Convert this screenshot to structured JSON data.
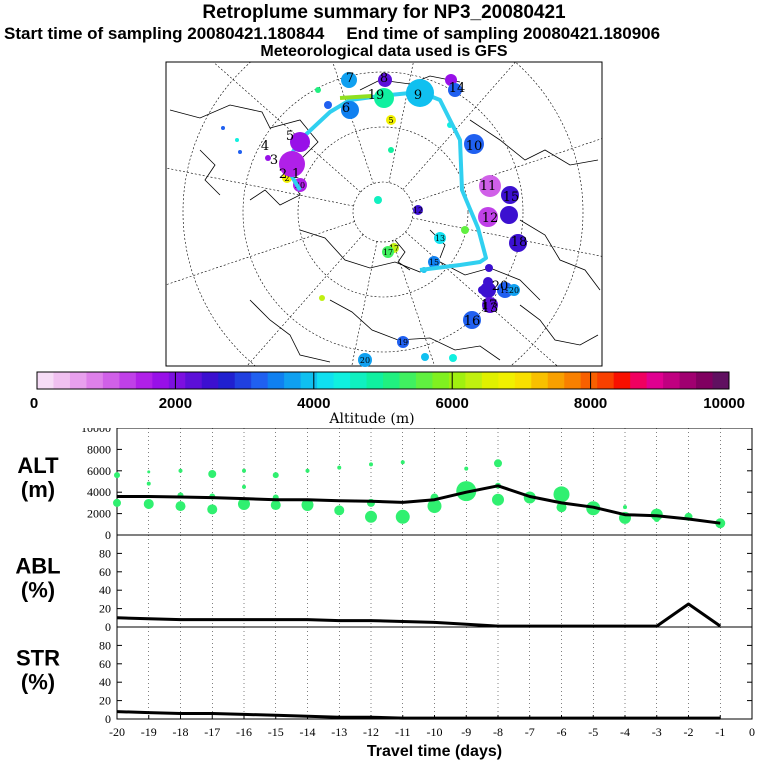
{
  "header": {
    "title": "Retroplume summary for NP3_20080421",
    "start_label": "Start time of sampling 20080421.180844",
    "end_label": "End time of sampling 20080421.180906",
    "met_label": "Meteorological data used is GFS"
  },
  "colorbar": {
    "ticks": [
      "0",
      "2000",
      "4000",
      "6000",
      "8000",
      "10000"
    ],
    "label": "Altitude (m)",
    "colors": [
      "#f6dcf6",
      "#f0c0f0",
      "#e8a0ee",
      "#de80ea",
      "#d060e8",
      "#c040e8",
      "#b020e8",
      "#9810e8",
      "#7c10e0",
      "#5c10d8",
      "#3c10d0",
      "#2020d0",
      "#2040e0",
      "#2060f0",
      "#1080f0",
      "#10a0f0",
      "#10c0f0",
      "#10e0f0",
      "#10f0e0",
      "#10f0c0",
      "#10f0a0",
      "#20f080",
      "#40f060",
      "#60f040",
      "#80f020",
      "#a0f010",
      "#c0f010",
      "#e0f000",
      "#f0f000",
      "#f8e000",
      "#f8c000",
      "#f8a000",
      "#f88000",
      "#f86000",
      "#f84000",
      "#f81000",
      "#f00060",
      "#e00090",
      "#c00080",
      "#a00070",
      "#800060",
      "#601060"
    ]
  },
  "map_labels": {
    "track_days": [
      "1",
      "2",
      "3",
      "4",
      "5",
      "6",
      "7",
      "8",
      "9",
      "10",
      "11",
      "12",
      "13",
      "14",
      "15",
      "16",
      "17",
      "18",
      "19",
      "20"
    ],
    "plume_labels": [
      "1",
      "2",
      "3",
      "4",
      "5",
      "6",
      "7",
      "8",
      "9",
      "10",
      "11",
      "12",
      "13",
      "14",
      "15",
      "16",
      "17",
      "18",
      "19",
      "20"
    ]
  },
  "chart_data": [
    {
      "type": "line",
      "panel": "ALT",
      "ylabel": "ALT\n(m)",
      "ylabel_line1": "ALT",
      "ylabel_line2": "(m)",
      "ylim": [
        0,
        10000
      ],
      "yticks": [
        "0",
        "2000",
        "4000",
        "6000",
        "8000",
        "10000"
      ],
      "x": [
        -20,
        -19,
        -18,
        -17,
        -16,
        -15,
        -14,
        -13,
        -12,
        -11,
        -10,
        -9,
        -8,
        -7,
        -6,
        -5,
        -4,
        -3,
        -2,
        -1
      ],
      "values": [
        3600,
        3600,
        3550,
        3500,
        3400,
        3300,
        3300,
        3200,
        3150,
        3050,
        3300,
        4000,
        4600,
        3600,
        3000,
        2600,
        1900,
        1800,
        1500,
        1100
      ],
      "markers_note": "green circles of varying size at scattered altitudes"
    },
    {
      "type": "line",
      "panel": "ABL",
      "ylabel_line1": "ABL",
      "ylabel_line2": "(%)",
      "ylim": [
        0,
        100
      ],
      "yticks": [
        "0",
        "20",
        "40",
        "60",
        "80"
      ],
      "x": [
        -20,
        -19,
        -18,
        -17,
        -16,
        -15,
        -14,
        -13,
        -12,
        -11,
        -10,
        -9,
        -8,
        -7,
        -6,
        -5,
        -4,
        -3,
        -2,
        -1
      ],
      "values": [
        10,
        9,
        8,
        8,
        8,
        8,
        8,
        7,
        7,
        6,
        5,
        3,
        1,
        1,
        1,
        1,
        1,
        1,
        25,
        1
      ]
    },
    {
      "type": "line",
      "panel": "STR",
      "ylabel_line1": "STR",
      "ylabel_line2": "(%)",
      "ylim": [
        0,
        100
      ],
      "yticks": [
        "0",
        "20",
        "40",
        "60",
        "80"
      ],
      "x": [
        -20,
        -19,
        -18,
        -17,
        -16,
        -15,
        -14,
        -13,
        -12,
        -11,
        -10,
        -9,
        -8,
        -7,
        -6,
        -5,
        -4,
        -3,
        -2,
        -1
      ],
      "values": [
        8,
        7,
        6,
        6,
        5,
        4,
        3,
        2,
        2,
        1,
        1,
        1,
        1,
        1,
        1,
        1,
        1,
        1,
        1,
        1
      ],
      "xlabel": "Travel time (days)",
      "xticks": [
        "-20",
        "-19",
        "-18",
        "-17",
        "-16",
        "-15",
        "-14",
        "-13",
        "-12",
        "-11",
        "-10",
        "-9",
        "-8",
        "-7",
        "-6",
        "-5",
        "-4",
        "-3",
        "-2",
        "-1",
        "0"
      ]
    }
  ]
}
